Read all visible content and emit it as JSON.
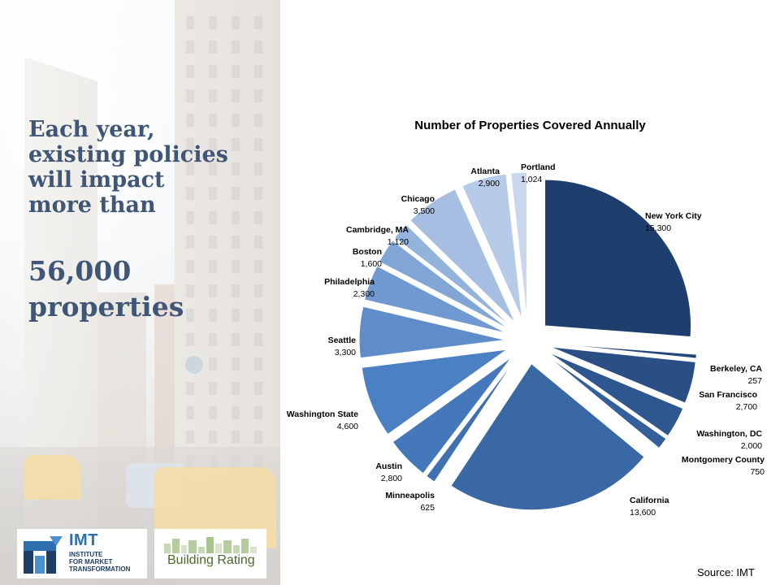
{
  "headline": {
    "lines": [
      "Each year,",
      "existing policies",
      "will impact",
      "more than"
    ],
    "number_lines": [
      "56,000",
      "properties"
    ]
  },
  "logos": {
    "imt_name": "IMT",
    "imt_sub": [
      "INSTITUTE",
      "FOR MARKET",
      "TRANSFORMATION"
    ],
    "building_rating": "Building Rating"
  },
  "source": "Source: IMT",
  "colors": {
    "headline": "#3f5677",
    "dark_slice": "#1e3f6e",
    "mid_slice": "#4a7fc4",
    "light_slice": "#d4e1f2"
  },
  "chart_data": {
    "type": "pie",
    "title": "Number of Properties Covered Annually",
    "start_angle_deg": 0,
    "direction": "clockwise",
    "exploded": true,
    "slices": [
      {
        "label": "New York City",
        "value": 15300,
        "display": "15,300"
      },
      {
        "label": "Berkeley, CA",
        "value": 257,
        "display": "257"
      },
      {
        "label": "San Francisco",
        "value": 2700,
        "display": "2,700"
      },
      {
        "label": "Washington, DC",
        "value": 2000,
        "display": "2,000"
      },
      {
        "label": "Montgomery County",
        "value": 750,
        "display": "750"
      },
      {
        "label": "California",
        "value": 13600,
        "display": "13,600"
      },
      {
        "label": "Minneapolis",
        "value": 625,
        "display": "625"
      },
      {
        "label": "Austin",
        "value": 2800,
        "display": "2,800"
      },
      {
        "label": "Washington State",
        "value": 4600,
        "display": "4,600"
      },
      {
        "label": "Seattle",
        "value": 3300,
        "display": "3,300"
      },
      {
        "label": "Philadelphia",
        "value": 2300,
        "display": "2,300"
      },
      {
        "label": "Boston",
        "value": 1600,
        "display": "1,600"
      },
      {
        "label": "Cambridge, MA",
        "value": 1120,
        "display": "1,120"
      },
      {
        "label": "Chicago",
        "value": 3500,
        "display": "3,500"
      },
      {
        "label": "Atlanta",
        "value": 2900,
        "display": "2,900"
      },
      {
        "label": "Portland",
        "value": 1024,
        "display": "1,024"
      }
    ]
  }
}
